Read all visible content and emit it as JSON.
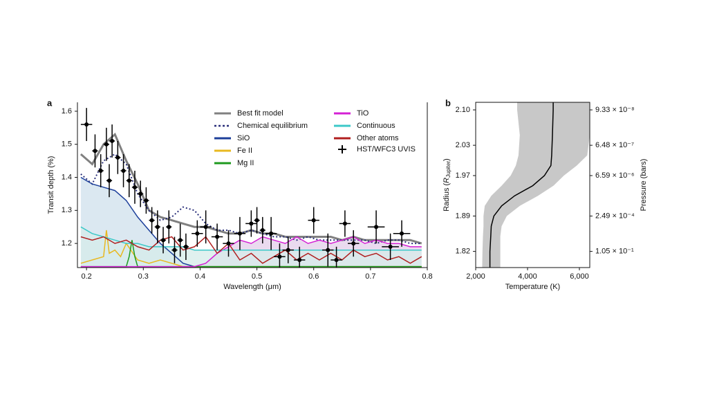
{
  "chart_data": [
    {
      "type": "spectrum",
      "panel_label": "a",
      "x_label": "Wavelength (μm)",
      "y_label": "Transit depth (%)",
      "xlim": [
        0.184,
        0.8
      ],
      "ylim": [
        1.127,
        1.627
      ],
      "xticks": [
        0.2,
        0.3,
        0.4,
        0.5,
        0.6,
        0.7,
        0.8
      ],
      "yticks": [
        1.2,
        1.3,
        1.4,
        1.5,
        1.6
      ],
      "legend": "top",
      "x": [
        0.19,
        0.21,
        0.23,
        0.25,
        0.27,
        0.29,
        0.31,
        0.33,
        0.35,
        0.37,
        0.39,
        0.41,
        0.43,
        0.45,
        0.47,
        0.49,
        0.51,
        0.53,
        0.55,
        0.57,
        0.59,
        0.61,
        0.63,
        0.65,
        0.67,
        0.69,
        0.71,
        0.73,
        0.75,
        0.77,
        0.79
      ],
      "series": [
        {
          "name": "Best fit model",
          "color": "#808080",
          "width": 3,
          "values": [
            1.47,
            1.44,
            1.5,
            1.53,
            1.45,
            1.38,
            1.3,
            1.28,
            1.27,
            1.26,
            1.25,
            1.25,
            1.24,
            1.23,
            1.23,
            1.24,
            1.23,
            1.23,
            1.22,
            1.22,
            1.22,
            1.22,
            1.22,
            1.21,
            1.22,
            1.21,
            1.21,
            1.21,
            1.21,
            1.21,
            1.2
          ]
        },
        {
          "name": "Chemical equilibrium",
          "color": "#2a2f7a",
          "width": 2,
          "dash": true,
          "values": [
            1.41,
            1.38,
            1.45,
            1.47,
            1.44,
            1.35,
            1.3,
            1.27,
            1.28,
            1.31,
            1.3,
            1.26,
            1.24,
            1.24,
            1.23,
            1.24,
            1.23,
            1.22,
            1.22,
            1.21,
            1.22,
            1.21,
            1.21,
            1.21,
            1.21,
            1.21,
            1.2,
            1.21,
            1.21,
            1.2,
            1.2
          ]
        },
        {
          "name": "SiO",
          "color": "#1c3f9a",
          "fill": "#cfe0ec",
          "width": 1.5,
          "values": [
            1.4,
            1.38,
            1.37,
            1.36,
            1.33,
            1.28,
            1.24,
            1.2,
            1.17,
            1.14,
            1.13,
            1.13,
            1.13,
            1.13,
            1.13,
            1.13,
            1.13,
            1.13,
            1.13,
            1.13,
            1.13,
            1.13,
            1.13,
            1.13,
            1.13,
            1.13,
            1.13,
            1.13,
            1.13,
            1.13,
            1.13
          ]
        },
        {
          "name": "Fe II",
          "color": "#e8b820",
          "width": 1.5,
          "x": [
            0.19,
            0.21,
            0.23,
            0.235,
            0.24,
            0.25,
            0.26,
            0.27,
            0.29,
            0.31,
            0.33,
            0.35,
            0.37,
            0.39,
            0.79
          ],
          "values": [
            1.14,
            1.15,
            1.16,
            1.24,
            1.17,
            1.18,
            1.16,
            1.2,
            1.15,
            1.14,
            1.15,
            1.14,
            1.13,
            1.13,
            1.13
          ]
        },
        {
          "name": "Mg II",
          "color": "#1e9a1e",
          "width": 1.5,
          "x": [
            0.19,
            0.27,
            0.275,
            0.28,
            0.285,
            0.29,
            0.79
          ],
          "values": [
            1.13,
            1.13,
            1.16,
            1.21,
            1.16,
            1.13,
            1.13
          ]
        },
        {
          "name": "TiO",
          "color": "#d420d4",
          "fill": "#e3cdea",
          "width": 1.5,
          "values": [
            1.13,
            1.13,
            1.13,
            1.13,
            1.13,
            1.13,
            1.13,
            1.13,
            1.13,
            1.13,
            1.13,
            1.14,
            1.17,
            1.19,
            1.21,
            1.2,
            1.22,
            1.21,
            1.2,
            1.22,
            1.2,
            1.21,
            1.2,
            1.21,
            1.22,
            1.2,
            1.21,
            1.2,
            1.2,
            1.19,
            1.19
          ]
        },
        {
          "name": "Continuous",
          "color": "#3cc8c8",
          "fill": "#d5ecea",
          "width": 1.5,
          "values": [
            1.25,
            1.23,
            1.22,
            1.21,
            1.2,
            1.2,
            1.19,
            1.19,
            1.19,
            1.19,
            1.18,
            1.18,
            1.18,
            1.18,
            1.18,
            1.18,
            1.18,
            1.18,
            1.18,
            1.18,
            1.18,
            1.18,
            1.18,
            1.18,
            1.18,
            1.18,
            1.18,
            1.18,
            1.18,
            1.18,
            1.18
          ]
        },
        {
          "name": "Other atoms",
          "color": "#b01e1e",
          "width": 1.5,
          "values": [
            1.22,
            1.21,
            1.22,
            1.2,
            1.21,
            1.19,
            1.18,
            1.21,
            1.22,
            1.18,
            1.19,
            1.22,
            1.17,
            1.2,
            1.15,
            1.17,
            1.14,
            1.16,
            1.18,
            1.15,
            1.17,
            1.15,
            1.17,
            1.15,
            1.18,
            1.16,
            1.17,
            1.15,
            1.16,
            1.14,
            1.16
          ]
        }
      ],
      "observations": {
        "name": "HST/WFC3 UVIS",
        "color": "#000000",
        "x": [
          0.2,
          0.215,
          0.225,
          0.235,
          0.24,
          0.245,
          0.255,
          0.265,
          0.275,
          0.285,
          0.295,
          0.305,
          0.315,
          0.325,
          0.335,
          0.345,
          0.355,
          0.365,
          0.375,
          0.395,
          0.41,
          0.43,
          0.45,
          0.47,
          0.49,
          0.5,
          0.51,
          0.525,
          0.54,
          0.555,
          0.575,
          0.6,
          0.625,
          0.64,
          0.655,
          0.67,
          0.71,
          0.735,
          0.755
        ],
        "values": [
          1.56,
          1.48,
          1.42,
          1.5,
          1.39,
          1.51,
          1.46,
          1.42,
          1.39,
          1.37,
          1.35,
          1.33,
          1.27,
          1.25,
          1.21,
          1.25,
          1.18,
          1.21,
          1.19,
          1.23,
          1.25,
          1.22,
          1.2,
          1.23,
          1.26,
          1.27,
          1.24,
          1.23,
          1.16,
          1.18,
          1.15,
          1.27,
          1.18,
          1.15,
          1.26,
          1.2,
          1.25,
          1.19,
          1.23
        ],
        "errors": [
          0.05,
          0.05,
          0.05,
          0.05,
          0.05,
          0.05,
          0.05,
          0.05,
          0.05,
          0.05,
          0.04,
          0.04,
          0.04,
          0.05,
          0.04,
          0.05,
          0.04,
          0.05,
          0.04,
          0.04,
          0.05,
          0.04,
          0.04,
          0.05,
          0.04,
          0.04,
          0.04,
          0.05,
          0.04,
          0.04,
          0.04,
          0.04,
          0.05,
          0.04,
          0.04,
          0.04,
          0.05,
          0.04,
          0.04
        ],
        "xerrors": [
          0.01,
          0.005,
          0.005,
          0.005,
          0.005,
          0.005,
          0.005,
          0.005,
          0.005,
          0.005,
          0.005,
          0.005,
          0.005,
          0.005,
          0.005,
          0.005,
          0.005,
          0.005,
          0.005,
          0.01,
          0.01,
          0.01,
          0.01,
          0.01,
          0.01,
          0.005,
          0.005,
          0.01,
          0.01,
          0.01,
          0.01,
          0.01,
          0.01,
          0.01,
          0.01,
          0.01,
          0.015,
          0.015,
          0.015
        ]
      }
    },
    {
      "type": "profile",
      "panel_label": "b",
      "x_label": "Temperature (K)",
      "y_label": [
        "Radius (",
        "R",
        "Jupiter",
        ")"
      ],
      "y2_label": "Pressure (bars)",
      "xlim": [
        2000,
        6400
      ],
      "ylim": [
        1.788,
        2.115
      ],
      "xticks": [
        {
          "value": 2000,
          "label": "2,000"
        },
        {
          "value": 4000,
          "label": "4,000"
        },
        {
          "value": 6000,
          "label": "6,000"
        }
      ],
      "yticks": [
        {
          "value": 2.1,
          "label": "2.10"
        },
        2.03,
        1.97,
        1.89,
        1.82
      ],
      "pressure_ticks": [
        {
          "radius": 2.1,
          "label": "9.33 × 10⁻⁸"
        },
        {
          "radius": 2.03,
          "label": "6.48 × 10⁻⁷"
        },
        {
          "radius": 1.97,
          "label": "6.59 × 10⁻⁶"
        },
        {
          "radius": 1.89,
          "label": "2.49 × 10⁻⁴"
        },
        {
          "radius": 1.82,
          "label": "1.05 × 10⁻¹"
        }
      ],
      "radius": [
        2.115,
        2.1,
        2.05,
        2.01,
        1.99,
        1.97,
        1.95,
        1.93,
        1.91,
        1.89,
        1.87,
        1.85,
        1.82,
        1.788
      ],
      "temperature": [
        4990,
        4990,
        4960,
        4930,
        4900,
        4650,
        4200,
        3500,
        3000,
        2700,
        2600,
        2580,
        2550,
        2550
      ],
      "temperature_low": [
        3600,
        3600,
        3700,
        3650,
        3550,
        3350,
        3000,
        2600,
        2350,
        2300,
        2300,
        2280,
        2260,
        2250
      ],
      "temperature_high": [
        6400,
        6400,
        6400,
        6300,
        5900,
        5400,
        5000,
        4400,
        3700,
        3200,
        3000,
        2950,
        2950,
        2950
      ],
      "color": "#000000",
      "band_color": "#c8c8c8"
    }
  ]
}
